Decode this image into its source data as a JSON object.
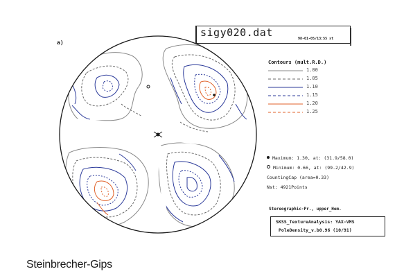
{
  "panel_label": "a)",
  "file": {
    "name": "sigy020.dat",
    "stamp": "98-01-05/13:55 st"
  },
  "legend": {
    "title": "Contours (mult.R.D.)",
    "levels": [
      {
        "value": "1.00",
        "style": "solid",
        "color": "#8a8a8a"
      },
      {
        "value": "1.05",
        "style": "dashed",
        "color": "#6a6a6a"
      },
      {
        "value": "1.10",
        "style": "solid",
        "color": "#2b3a9a"
      },
      {
        "value": "1.15",
        "style": "dashed",
        "color": "#2b3a9a"
      },
      {
        "value": "1.20",
        "style": "solid",
        "color": "#e0622a"
      },
      {
        "value": "1.25",
        "style": "dashed",
        "color": "#e0622a"
      }
    ]
  },
  "stats": {
    "maximum": "Maximum: 1.30, at: (31.9/58.0)",
    "minimum": "Minimum: 0.66, at: (99.2/42.9)",
    "counting_cap": "CountingCap (area=0.33)",
    "nst": "Nst: 4921Points"
  },
  "projection": "Stereographic-Pr., upper_Hem.",
  "analysis": {
    "line1": "SKSS_TextureAnalysis: YAX-VMS",
    "line2": "PoleDensity_v.b0.96 (10/91)"
  },
  "caption": "Steinbrecher-Gips",
  "colors": {
    "outline": "#1a1a1a",
    "grey": "#7a7a7a",
    "blue": "#2b3a9a",
    "orange": "#e0622a"
  }
}
